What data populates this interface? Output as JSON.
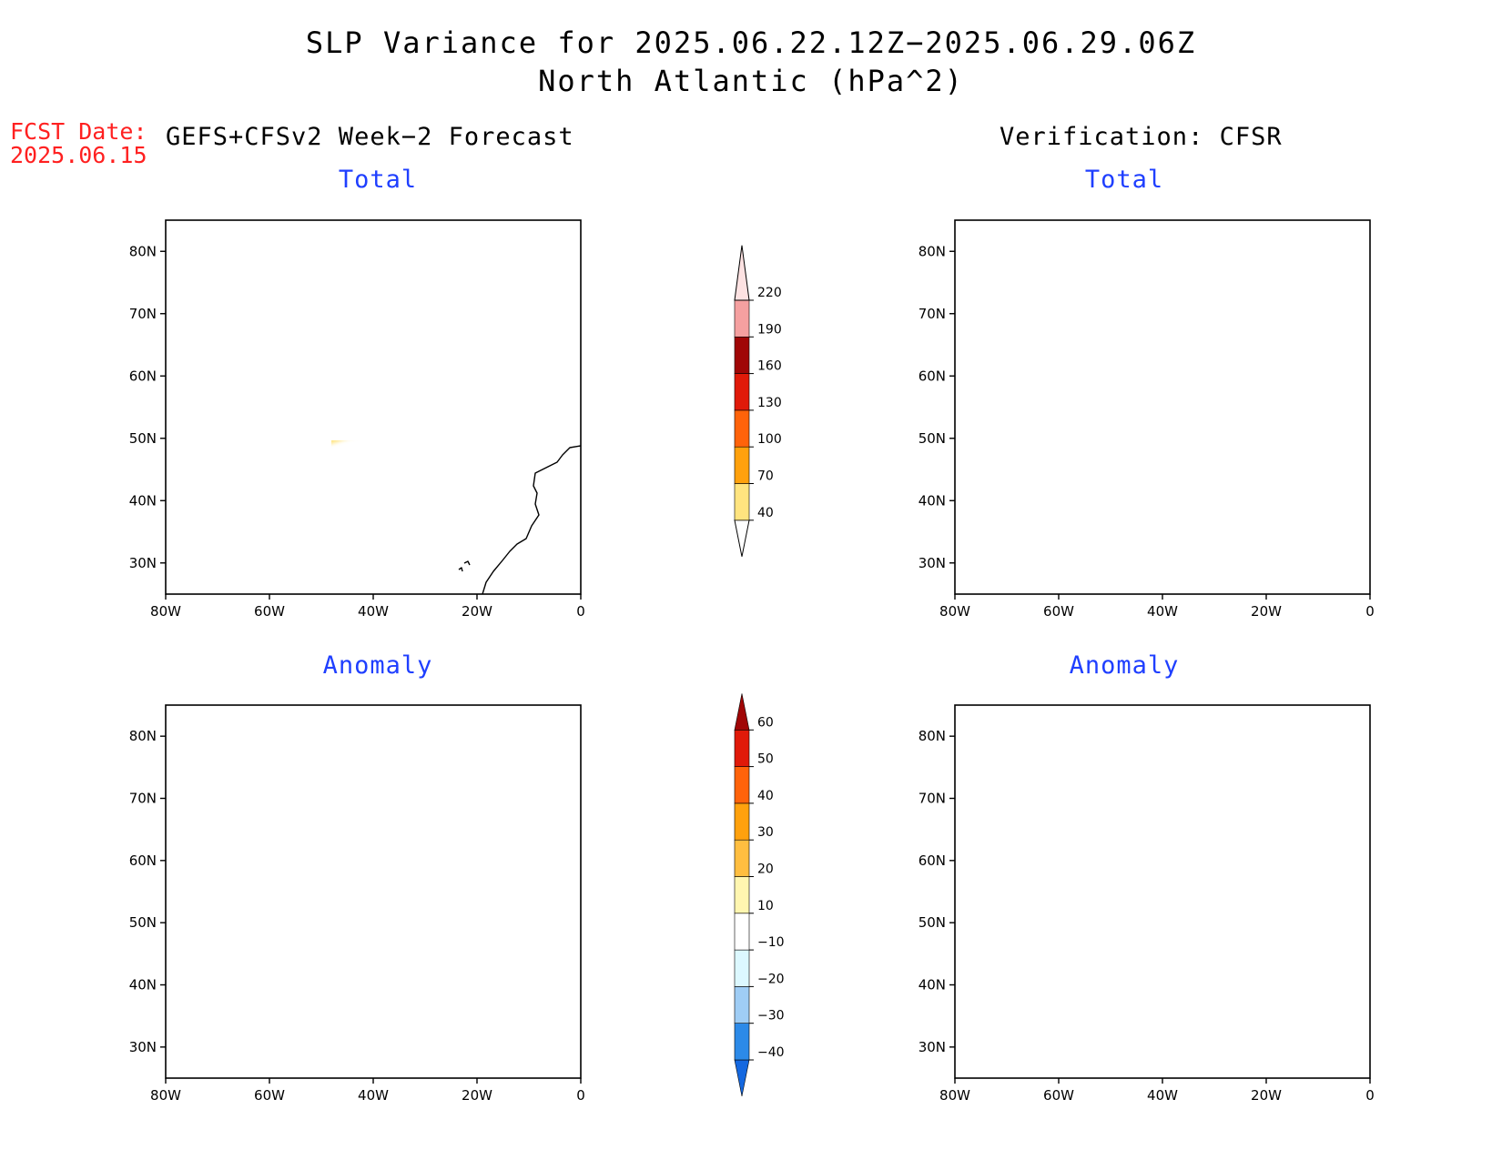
{
  "title": {
    "line1": "SLP Variance for 2025.06.22.12Z−2025.06.29.06Z",
    "line2": "North Atlantic (hPa^2)"
  },
  "fcst_date": {
    "label": "FCST Date:",
    "value": "2025.06.15"
  },
  "columns": {
    "left": "GEFS+CFSv2 Week−2 Forecast",
    "right": "Verification: CFSR"
  },
  "panels": {
    "forecast_total": "Total",
    "forecast_anomaly": "Anomaly",
    "verification_total": "Total",
    "verification_anomaly": "Anomaly"
  },
  "axes": {
    "lat_labels": [
      "30N",
      "40N",
      "50N",
      "60N",
      "70N",
      "80N"
    ],
    "lon_labels": [
      "80W",
      "60W",
      "40W",
      "20W",
      "0"
    ]
  },
  "colorbars": {
    "total": {
      "labels": [
        "40",
        "70",
        "100",
        "130",
        "160",
        "190",
        "220"
      ],
      "colors": [
        "#ffe47f",
        "#ffa10d",
        "#ff630a",
        "#e01a09",
        "#a00606",
        "#f5a0a0",
        "#fde2e2"
      ]
    },
    "anomaly": {
      "labels": [
        "−40",
        "−30",
        "−20",
        "−10",
        "10",
        "20",
        "30",
        "40",
        "50",
        "60"
      ],
      "colors": [
        "#1468e0",
        "#2c8ae8",
        "#9fcdf5",
        "#dcf8ff",
        "#ffffff",
        "#fff6b0",
        "#ffbe40",
        "#ffa10d",
        "#ff630a",
        "#e01a09",
        "#a00606"
      ]
    }
  }
}
